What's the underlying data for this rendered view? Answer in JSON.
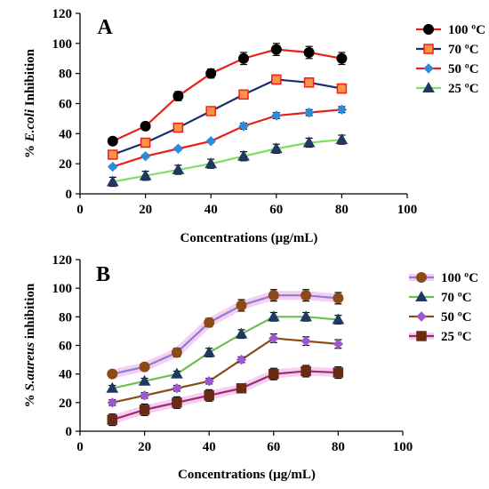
{
  "chart_data": [
    {
      "type": "line",
      "panel_label": "A",
      "xlabel": "Concentrations (µg/mL)",
      "ylabel_prefix": "% ",
      "ylabel_italic": "E.coli",
      "ylabel_suffix": " Inhibition",
      "xlim": [
        0,
        100
      ],
      "ylim": [
        0,
        120
      ],
      "xticks": [
        0,
        20,
        40,
        60,
        80,
        100
      ],
      "yticks": [
        0,
        20,
        40,
        60,
        80,
        100,
        120
      ],
      "grid": false,
      "error_bars": true,
      "legend_position": "right",
      "x": [
        10,
        20,
        30,
        40,
        50,
        60,
        70,
        80
      ],
      "series": [
        {
          "name": "100 ºC",
          "values": [
            35,
            45,
            65,
            80,
            90,
            96,
            94,
            90
          ],
          "errors": [
            2,
            2,
            3,
            3,
            4,
            4,
            4,
            4
          ],
          "line_color": "#e8201c",
          "marker": "circle",
          "marker_fill": "#000000",
          "marker_stroke": "#000000",
          "glow": ""
        },
        {
          "name": "70 ºC",
          "values": [
            26,
            34,
            44,
            55,
            66,
            76,
            74,
            70
          ],
          "errors": [
            2,
            2,
            2,
            2,
            3,
            3,
            3,
            3
          ],
          "line_color": "#1a2d6e",
          "marker": "square",
          "marker_fill": "#f79646",
          "marker_stroke": "#ff1a1a",
          "glow": ""
        },
        {
          "name": "50 ºC",
          "values": [
            18,
            25,
            30,
            35,
            45,
            52,
            54,
            56
          ],
          "errors": [
            1,
            1,
            1,
            1,
            2,
            2,
            2,
            2
          ],
          "line_color": "#e8201c",
          "marker": "diamond",
          "marker_fill": "#2e8bd8",
          "marker_stroke": "#2e8bd8",
          "glow": ""
        },
        {
          "name": "25 ºC",
          "values": [
            8,
            12,
            16,
            20,
            25,
            30,
            34,
            36
          ],
          "errors": [
            3,
            3,
            3,
            3,
            3,
            3,
            3,
            3
          ],
          "line_color": "#7ee060",
          "marker": "triangle",
          "marker_fill": "#1f3864",
          "marker_stroke": "#1f3864",
          "glow": ""
        }
      ]
    },
    {
      "type": "line",
      "panel_label": "B",
      "xlabel": "Concentrations (µg/mL)",
      "ylabel_prefix": "% ",
      "ylabel_italic": "S.aureus",
      "ylabel_suffix": " inhibition",
      "xlim": [
        0,
        100
      ],
      "ylim": [
        0,
        120
      ],
      "xticks": [
        0,
        20,
        40,
        60,
        80,
        100
      ],
      "yticks": [
        0,
        20,
        40,
        60,
        80,
        100,
        120
      ],
      "grid": false,
      "error_bars": true,
      "legend_position": "right",
      "x": [
        10,
        20,
        30,
        40,
        50,
        60,
        70,
        80
      ],
      "series": [
        {
          "name": "100 ºC",
          "values": [
            40,
            45,
            55,
            76,
            88,
            95,
            95,
            93
          ],
          "errors": [
            2,
            2,
            3,
            3,
            4,
            4,
            4,
            4
          ],
          "line_color": "#8d7cd6",
          "marker": "circle",
          "marker_fill": "#8b4a16",
          "marker_stroke": "#8b4a16",
          "glow": "#f2c4ee"
        },
        {
          "name": "70 ºC",
          "values": [
            30,
            35,
            40,
            55,
            68,
            80,
            80,
            78
          ],
          "errors": [
            2,
            2,
            2,
            3,
            3,
            3,
            3,
            3
          ],
          "line_color": "#6fbf50",
          "marker": "triangle",
          "marker_fill": "#1f3864",
          "marker_stroke": "#1f3864",
          "glow": ""
        },
        {
          "name": "50 ºC",
          "values": [
            20,
            25,
            30,
            35,
            50,
            65,
            63,
            61
          ],
          "errors": [
            2,
            2,
            2,
            2,
            2,
            3,
            3,
            3
          ],
          "line_color": "#8b4a16",
          "marker": "diamond",
          "marker_fill": "#9b59d0",
          "marker_stroke": "#9b59d0",
          "glow": ""
        },
        {
          "name": "25 ºC",
          "values": [
            8,
            15,
            20,
            25,
            30,
            40,
            42,
            41
          ],
          "errors": [
            4,
            4,
            4,
            4,
            3,
            4,
            4,
            4
          ],
          "line_color": "#9b2a6e",
          "marker": "square",
          "marker_fill": "#6b2a14",
          "marker_stroke": "#6b2a14",
          "glow": "#f2c4ee"
        }
      ]
    }
  ]
}
